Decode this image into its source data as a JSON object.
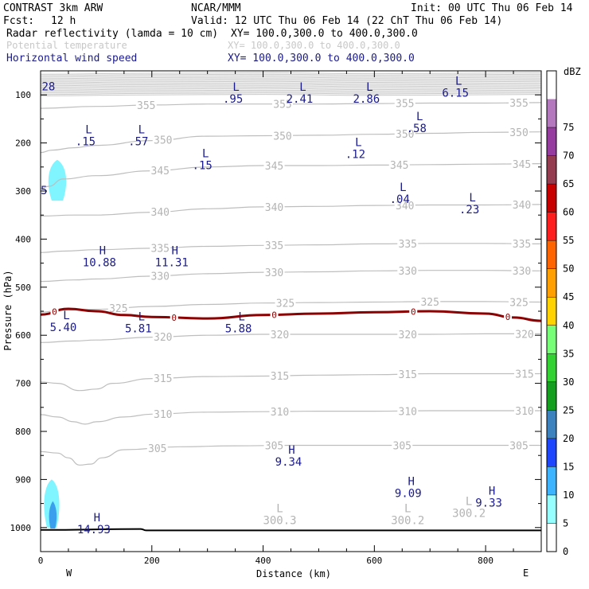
{
  "header": {
    "model": "CONTRAST  3km ARW",
    "org": "NCAR/MMM",
    "init": "Init: 00 UTC Thu 06 Feb 14",
    "fcst_label": "Fcst:",
    "fcst_value": "12 h",
    "valid": "Valid: 12 UTC Thu 06 Feb 14 (22 ChT Thu 06 Feb 14)",
    "fields": [
      {
        "name": "Radar reflectivity (lamda = 10 cm)",
        "xy": "XY= 100.0,300.0 to 400.0,300.0",
        "color": "#000000"
      },
      {
        "name": "Potential temperature",
        "xy": "XY= 100.0,300.0 to 400.0,300.0",
        "color": "#c8c8c8"
      },
      {
        "name": "Horizontal wind speed",
        "xy": "XY= 100.0,300.0 to 400.0,300.0",
        "color": "#1a1a8c"
      }
    ]
  },
  "colorbar": {
    "title": "dBZ",
    "ticks": [
      "0",
      "5",
      "10",
      "15",
      "20",
      "25",
      "30",
      "35",
      "40",
      "45",
      "50",
      "55",
      "60",
      "65",
      "70",
      "75"
    ],
    "colors": [
      "#ffffff",
      "#96ffff",
      "#3cb4ff",
      "#1e46ff",
      "#3c82be",
      "#14a01e",
      "#32d232",
      "#78ff78",
      "#ffd200",
      "#ffa000",
      "#ff6400",
      "#ff1e1e",
      "#c80000",
      "#963c50",
      "#963ca0",
      "#b478be"
    ]
  },
  "chart_data": {
    "type": "contour-cross-section",
    "xlabel": "Distance (km)",
    "ylabel": "Pressure (hPa)",
    "xlim": [
      0,
      900
    ],
    "ylim": [
      1050,
      50
    ],
    "x_ticks": [
      0,
      200,
      400,
      600,
      800
    ],
    "y_ticks": [
      100,
      200,
      300,
      400,
      500,
      600,
      700,
      800,
      900,
      1000
    ],
    "x_end_labels": {
      "left": "W",
      "right": "E"
    },
    "theta_contours": [
      {
        "value": "355",
        "pts": [
          [
            0,
            128
          ],
          [
            100,
            124
          ],
          [
            200,
            121
          ],
          [
            300,
            119
          ],
          [
            400,
            119
          ],
          [
            500,
            119
          ],
          [
            600,
            118
          ],
          [
            700,
            117
          ],
          [
            800,
            117
          ],
          [
            900,
            116
          ]
        ],
        "labels": [
          [
            190,
            355
          ],
          [
            435,
            355
          ],
          [
            655,
            355
          ],
          [
            860,
            355
          ]
        ]
      },
      {
        "value": "350",
        "pts": [
          [
            0,
            220
          ],
          [
            20,
            215
          ],
          [
            60,
            210
          ],
          [
            100,
            205
          ],
          [
            200,
            195
          ],
          [
            300,
            186
          ],
          [
            400,
            185
          ],
          [
            500,
            184
          ],
          [
            600,
            182
          ],
          [
            700,
            180
          ],
          [
            800,
            178
          ],
          [
            900,
            177
          ]
        ],
        "labels": [
          [
            220,
            350
          ],
          [
            435,
            350
          ],
          [
            655,
            350
          ],
          [
            860,
            350
          ]
        ]
      },
      {
        "value": "345",
        "pts": [
          [
            0,
            295
          ],
          [
            15,
            290
          ],
          [
            40,
            275
          ],
          [
            100,
            268
          ],
          [
            200,
            258
          ],
          [
            300,
            250
          ],
          [
            400,
            247
          ],
          [
            500,
            247
          ],
          [
            600,
            246
          ],
          [
            700,
            245
          ],
          [
            800,
            244
          ],
          [
            900,
            243
          ]
        ],
        "labels": [
          [
            215,
            345
          ],
          [
            420,
            345
          ],
          [
            645,
            345
          ],
          [
            865,
            345
          ]
        ]
      },
      {
        "value": "340",
        "pts": [
          [
            0,
            352
          ],
          [
            60,
            350
          ],
          [
            100,
            350
          ],
          [
            200,
            344
          ],
          [
            300,
            337
          ],
          [
            400,
            333
          ],
          [
            500,
            332
          ],
          [
            600,
            330
          ],
          [
            700,
            329
          ],
          [
            800,
            329
          ],
          [
            900,
            328
          ]
        ],
        "labels": [
          [
            215,
            340
          ],
          [
            420,
            340
          ],
          [
            655,
            340
          ],
          [
            865,
            340
          ]
        ]
      },
      {
        "value": "335",
        "pts": [
          [
            0,
            428
          ],
          [
            40,
            425
          ],
          [
            100,
            422
          ],
          [
            200,
            419
          ],
          [
            300,
            415
          ],
          [
            400,
            413
          ],
          [
            500,
            412
          ],
          [
            600,
            410
          ],
          [
            700,
            409
          ],
          [
            800,
            409
          ],
          [
            900,
            410
          ]
        ],
        "labels": [
          [
            215,
            335
          ],
          [
            420,
            335
          ],
          [
            660,
            335
          ],
          [
            865,
            335
          ]
        ]
      },
      {
        "value": "330",
        "pts": [
          [
            0,
            488
          ],
          [
            60,
            485
          ],
          [
            100,
            483
          ],
          [
            200,
            477
          ],
          [
            300,
            472
          ],
          [
            400,
            469
          ],
          [
            500,
            468
          ],
          [
            600,
            466
          ],
          [
            700,
            465
          ],
          [
            800,
            465
          ],
          [
            900,
            466
          ]
        ],
        "labels": [
          [
            215,
            330
          ],
          [
            420,
            330
          ],
          [
            660,
            330
          ],
          [
            865,
            330
          ]
        ]
      },
      {
        "value": "325",
        "pts": [
          [
            0,
            552
          ],
          [
            40,
            548
          ],
          [
            100,
            546
          ],
          [
            200,
            540
          ],
          [
            300,
            536
          ],
          [
            400,
            533
          ],
          [
            500,
            532
          ],
          [
            600,
            531
          ],
          [
            700,
            530
          ],
          [
            800,
            530
          ],
          [
            900,
            531
          ]
        ],
        "labels": [
          [
            140,
            325
          ],
          [
            440,
            325
          ],
          [
            700,
            325
          ],
          [
            860,
            325
          ]
        ]
      },
      {
        "value": "320",
        "pts": [
          [
            0,
            615
          ],
          [
            60,
            612
          ],
          [
            100,
            610
          ],
          [
            200,
            604
          ],
          [
            300,
            600
          ],
          [
            400,
            598
          ],
          [
            500,
            598
          ],
          [
            600,
            598
          ],
          [
            700,
            598
          ],
          [
            800,
            597
          ],
          [
            900,
            597
          ]
        ],
        "labels": [
          [
            220,
            320
          ],
          [
            430,
            320
          ],
          [
            660,
            320
          ],
          [
            870,
            320
          ]
        ]
      },
      {
        "value": "315",
        "pts": [
          [
            0,
            697
          ],
          [
            30,
            700
          ],
          [
            70,
            715
          ],
          [
            100,
            712
          ],
          [
            130,
            700
          ],
          [
            200,
            690
          ],
          [
            300,
            686
          ],
          [
            400,
            685
          ],
          [
            500,
            683
          ],
          [
            600,
            682
          ],
          [
            700,
            680
          ],
          [
            800,
            680
          ],
          [
            900,
            680
          ]
        ],
        "labels": [
          [
            220,
            315
          ],
          [
            430,
            315
          ],
          [
            660,
            315
          ],
          [
            870,
            315
          ]
        ]
      },
      {
        "value": "310",
        "pts": [
          [
            0,
            765
          ],
          [
            30,
            770
          ],
          [
            60,
            780
          ],
          [
            80,
            785
          ],
          [
            100,
            780
          ],
          [
            150,
            770
          ],
          [
            200,
            764
          ],
          [
            300,
            760
          ],
          [
            400,
            759
          ],
          [
            500,
            758
          ],
          [
            600,
            758
          ],
          [
            700,
            757
          ],
          [
            800,
            757
          ],
          [
            900,
            757
          ]
        ],
        "labels": [
          [
            220,
            310
          ],
          [
            430,
            310
          ],
          [
            660,
            310
          ],
          [
            870,
            310
          ]
        ]
      },
      {
        "value": "305",
        "pts": [
          [
            0,
            842
          ],
          [
            30,
            845
          ],
          [
            50,
            855
          ],
          [
            70,
            870
          ],
          [
            90,
            868
          ],
          [
            110,
            855
          ],
          [
            150,
            838
          ],
          [
            250,
            832
          ],
          [
            350,
            830
          ],
          [
            450,
            829
          ],
          [
            550,
            829
          ],
          [
            650,
            829
          ],
          [
            750,
            829
          ],
          [
            900,
            829
          ]
        ],
        "labels": [
          [
            210,
            305
          ],
          [
            420,
            305
          ],
          [
            650,
            305
          ],
          [
            860,
            305
          ]
        ]
      }
    ],
    "top_dense_band_hpa": [
      55,
      100
    ],
    "zero_dbz_line": {
      "label": "0",
      "pts": [
        [
          0,
          557
        ],
        [
          50,
          545
        ],
        [
          100,
          550
        ],
        [
          150,
          558
        ],
        [
          200,
          562
        ],
        [
          300,
          565
        ],
        [
          400,
          558
        ],
        [
          500,
          555
        ],
        [
          600,
          552
        ],
        [
          700,
          550
        ],
        [
          800,
          555
        ],
        [
          850,
          563
        ],
        [
          900,
          570
        ]
      ],
      "label_x": [
        25,
        240,
        420,
        670,
        840
      ],
      "color": "#8b0000"
    },
    "wind_extrema": [
      {
        "type": "L",
        "value": ".95",
        "x": 340,
        "p": 95
      },
      {
        "type": "L",
        "value": "2.41",
        "x": 460,
        "p": 95
      },
      {
        "type": "L",
        "value": "2.86",
        "x": 580,
        "p": 95
      },
      {
        "type": "L",
        "value": "6.15",
        "x": 740,
        "p": 82
      },
      {
        "type": "L",
        "value": ".15",
        "x": 75,
        "p": 183
      },
      {
        "type": "L",
        "value": ".57",
        "x": 170,
        "p": 183
      },
      {
        "type": "L",
        "value": ".58",
        "x": 670,
        "p": 156
      },
      {
        "type": "L",
        "value": ".15",
        "x": 285,
        "p": 233
      },
      {
        "type": "L",
        "value": ".12",
        "x": 560,
        "p": 210
      },
      {
        "type": "L",
        "value": ".04",
        "x": 640,
        "p": 303
      },
      {
        "type": "L",
        "value": ".23",
        "x": 765,
        "p": 325
      },
      {
        "type": "H",
        "value": "10.88",
        "x": 100,
        "p": 435
      },
      {
        "type": "H",
        "value": "11.31",
        "x": 230,
        "p": 435
      },
      {
        "type": "L",
        "value": "5.40",
        "x": 35,
        "p": 570
      },
      {
        "type": "L",
        "value": "5.81",
        "x": 170,
        "p": 572
      },
      {
        "type": "L",
        "value": "5.88",
        "x": 350,
        "p": 572
      },
      {
        "type": "H",
        "value": "9.34",
        "x": 440,
        "p": 850
      },
      {
        "type": "H",
        "value": "9.09",
        "x": 655,
        "p": 915
      },
      {
        "type": "H",
        "value": "9.33",
        "x": 800,
        "p": 935
      },
      {
        "type": "H",
        "value": "14.93",
        "x": 90,
        "p": 990
      }
    ],
    "theta_extrema": [
      {
        "type": "L",
        "value": "300.3",
        "x": 430,
        "p": 975
      },
      {
        "type": "L",
        "value": "300.2",
        "x": 660,
        "p": 975
      },
      {
        "type": "L",
        "value": "300.2",
        "x": 770,
        "p": 960
      }
    ],
    "theta_edge_labels": [
      {
        "value": "28",
        "x": 5,
        "p": 82
      },
      {
        "value": "5",
        "x": 3,
        "p": 298
      }
    ],
    "reflectivity_cells": [
      {
        "dbz": 10,
        "x_center": 30,
        "p_top": 235,
        "p_bottom": 320,
        "half_width": 14
      },
      {
        "dbz": 10,
        "x_center": 20,
        "p_top": 900,
        "p_bottom": 1000,
        "half_width": 12
      },
      {
        "dbz": 15,
        "x_center": 22,
        "p_top": 945,
        "p_bottom": 1002,
        "half_width": 6
      }
    ],
    "terrain_line": {
      "pts": [
        [
          0,
          1005
        ],
        [
          180,
          1003
        ],
        [
          190,
          1006
        ],
        [
          900,
          1006
        ]
      ]
    }
  }
}
